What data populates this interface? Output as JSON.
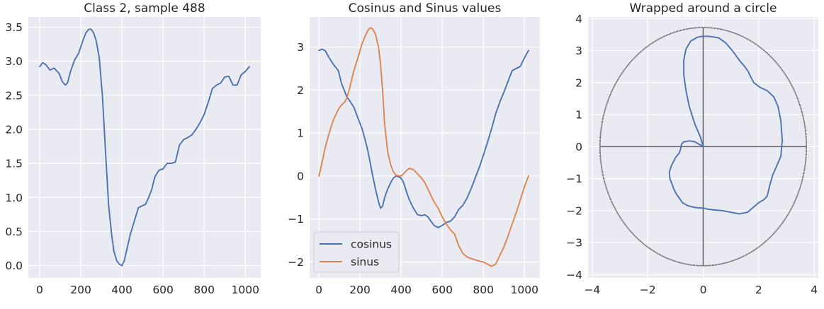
{
  "colors": {
    "cosinus": "#4c72b0",
    "sinus": "#dd8452",
    "plot_bg": "#eaeaf2",
    "grid": "#ffffff",
    "circle": "#666666"
  },
  "chart_data": [
    {
      "type": "line",
      "title": "Class 2, sample 488",
      "xlim": [
        -55,
        1075
      ],
      "ylim": [
        -0.18,
        3.65
      ],
      "xticks": [
        0,
        200,
        400,
        600,
        800,
        1000
      ],
      "xtick_labels": [
        "0",
        "200",
        "400",
        "600",
        "800",
        "1000"
      ],
      "yticks": [
        0,
        0.5,
        1,
        1.5,
        2,
        2.5,
        3,
        3.5
      ],
      "ytick_labels": [
        "0.0",
        "0.5",
        "1.0",
        "1.5",
        "2.0",
        "2.5",
        "3.0",
        "3.5"
      ],
      "grid": true,
      "series": [
        {
          "color": "#4c72b0",
          "x": [
            0,
            15,
            30,
            50,
            70,
            95,
            110,
            125,
            135,
            150,
            170,
            190,
            210,
            225,
            240,
            250,
            262,
            275,
            290,
            305,
            320,
            335,
            350,
            362,
            375,
            388,
            400,
            412,
            425,
            440,
            460,
            480,
            500,
            515,
            530,
            545,
            560,
            580,
            600,
            620,
            640,
            660,
            680,
            700,
            720,
            740,
            760,
            780,
            800,
            820,
            840,
            860,
            880,
            900,
            920,
            940,
            960,
            980,
            1000,
            1020
          ],
          "y": [
            2.92,
            2.98,
            2.95,
            2.87,
            2.9,
            2.82,
            2.7,
            2.65,
            2.68,
            2.85,
            3.02,
            3.12,
            3.3,
            3.42,
            3.47,
            3.47,
            3.42,
            3.3,
            3.05,
            2.5,
            1.7,
            0.9,
            0.45,
            0.2,
            0.07,
            0.02,
            0.0,
            0.08,
            0.25,
            0.45,
            0.65,
            0.85,
            0.88,
            0.9,
            1.0,
            1.12,
            1.3,
            1.4,
            1.42,
            1.5,
            1.5,
            1.52,
            1.77,
            1.85,
            1.88,
            1.92,
            2.0,
            2.1,
            2.22,
            2.4,
            2.6,
            2.65,
            2.68,
            2.77,
            2.78,
            2.65,
            2.65,
            2.8,
            2.85,
            2.92
          ]
        }
      ]
    },
    {
      "type": "line",
      "title": "Cosinus and Sinus values",
      "xlim": [
        -45,
        1075
      ],
      "ylim": [
        -2.37,
        3.7
      ],
      "xticks": [
        0,
        200,
        400,
        600,
        800,
        1000
      ],
      "xtick_labels": [
        "0",
        "200",
        "400",
        "600",
        "800",
        "1000"
      ],
      "yticks": [
        -2,
        -1,
        0,
        1,
        2,
        3
      ],
      "ytick_labels": [
        "−2",
        "−1",
        "0",
        "1",
        "2",
        "3"
      ],
      "grid": true,
      "legend": {
        "entries": [
          "cosinus",
          "sinus"
        ],
        "position": "lower-left"
      },
      "series": [
        {
          "name": "cosinus",
          "color": "#4c72b0",
          "x": [
            0,
            15,
            30,
            50,
            70,
            95,
            110,
            125,
            135,
            150,
            170,
            190,
            210,
            225,
            240,
            250,
            262,
            275,
            290,
            300,
            310,
            320,
            335,
            350,
            362,
            375,
            388,
            400,
            412,
            425,
            440,
            460,
            480,
            500,
            515,
            530,
            545,
            560,
            580,
            600,
            620,
            640,
            660,
            680,
            700,
            720,
            740,
            760,
            780,
            800,
            820,
            840,
            860,
            880,
            900,
            920,
            940,
            960,
            980,
            1000,
            1020
          ],
          "y": [
            2.92,
            2.95,
            2.92,
            2.75,
            2.6,
            2.45,
            2.15,
            1.98,
            1.85,
            1.75,
            1.6,
            1.35,
            1.1,
            0.85,
            0.55,
            0.3,
            0.0,
            -0.3,
            -0.6,
            -0.75,
            -0.7,
            -0.5,
            -0.3,
            -0.15,
            -0.05,
            0.0,
            -0.02,
            -0.05,
            -0.15,
            -0.35,
            -0.55,
            -0.75,
            -0.9,
            -0.92,
            -0.9,
            -0.95,
            -1.05,
            -1.15,
            -1.2,
            -1.15,
            -1.08,
            -1.05,
            -0.95,
            -0.78,
            -0.68,
            -0.52,
            -0.3,
            -0.05,
            0.2,
            0.48,
            0.78,
            1.1,
            1.45,
            1.72,
            1.95,
            2.2,
            2.45,
            2.5,
            2.55,
            2.75,
            2.92
          ]
        },
        {
          "name": "sinus",
          "color": "#dd8452",
          "x": [
            0,
            15,
            30,
            50,
            70,
            95,
            110,
            125,
            135,
            150,
            170,
            190,
            210,
            225,
            240,
            250,
            262,
            275,
            290,
            300,
            310,
            320,
            335,
            350,
            362,
            375,
            388,
            400,
            412,
            425,
            440,
            460,
            480,
            500,
            515,
            530,
            545,
            560,
            580,
            600,
            620,
            640,
            660,
            680,
            700,
            720,
            740,
            760,
            780,
            800,
            820,
            840,
            860,
            880,
            900,
            920,
            940,
            960,
            980,
            1000,
            1020
          ],
          "y": [
            0.0,
            0.3,
            0.65,
            1.0,
            1.3,
            1.55,
            1.65,
            1.72,
            1.8,
            2.05,
            2.45,
            2.75,
            3.08,
            3.25,
            3.4,
            3.45,
            3.42,
            3.3,
            3.0,
            2.6,
            2.0,
            1.2,
            0.55,
            0.25,
            0.1,
            0.02,
            0.0,
            0.0,
            0.05,
            0.12,
            0.18,
            0.15,
            0.05,
            -0.05,
            -0.15,
            -0.3,
            -0.45,
            -0.6,
            -0.75,
            -0.95,
            -1.12,
            -1.25,
            -1.35,
            -1.62,
            -1.8,
            -1.88,
            -1.92,
            -1.95,
            -1.98,
            -2.0,
            -2.05,
            -2.1,
            -2.05,
            -1.85,
            -1.65,
            -1.4,
            -1.12,
            -0.85,
            -0.55,
            -0.25,
            0.0
          ]
        }
      ]
    },
    {
      "type": "line",
      "title": "Wrapped around a circle",
      "xlim": [
        -4.15,
        4.15
      ],
      "ylim": [
        -4.1,
        4.05
      ],
      "xticks": [
        -4,
        -2,
        0,
        2,
        4
      ],
      "xtick_labels": [
        "−4",
        "−2",
        "0",
        "2",
        "4"
      ],
      "yticks": [
        -4,
        -3,
        -2,
        -1,
        0,
        1,
        2,
        3,
        4
      ],
      "ytick_labels": [
        "−4",
        "−3",
        "−2",
        "−1",
        "0",
        "1",
        "2",
        "3",
        "4"
      ],
      "grid": true,
      "circle_radius": 3.72,
      "series": [
        {
          "color": "#4c72b0",
          "x": [
            0.0,
            0.25,
            0.55,
            0.8,
            1.05,
            1.3,
            1.5,
            1.62,
            1.7,
            1.82,
            2.05,
            2.3,
            2.55,
            2.7,
            2.8,
            2.85,
            2.8,
            2.65,
            2.5,
            2.4,
            2.35,
            2.3,
            2.2,
            2.0,
            1.8,
            1.6,
            1.3,
            1.0,
            0.7,
            0.4,
            0.15,
            0.0,
            -0.3,
            -0.55,
            -0.75,
            -0.85,
            -0.95,
            -1.05,
            -1.1,
            -1.2,
            -1.22,
            -1.15,
            -1.0,
            -0.85,
            -0.8,
            -0.78,
            -0.7,
            -0.5,
            -0.3,
            -0.1,
            0.0,
            -0.1,
            -0.3,
            -0.5,
            -0.62,
            -0.7,
            -0.7,
            -0.62,
            -0.45,
            -0.2,
            0.0
          ],
          "y": [
            3.45,
            3.44,
            3.4,
            3.25,
            3.0,
            2.7,
            2.5,
            2.35,
            2.2,
            2.0,
            1.85,
            1.75,
            1.55,
            1.25,
            0.8,
            0.2,
            -0.3,
            -0.6,
            -0.9,
            -1.2,
            -1.4,
            -1.55,
            -1.65,
            -1.75,
            -1.9,
            -2.05,
            -2.1,
            -2.05,
            -2.0,
            -1.98,
            -1.95,
            -1.92,
            -1.9,
            -1.85,
            -1.75,
            -1.62,
            -1.5,
            -1.35,
            -1.22,
            -1.0,
            -0.8,
            -0.6,
            -0.35,
            -0.18,
            -0.02,
            0.08,
            0.15,
            0.18,
            0.15,
            0.05,
            0.0,
            0.3,
            0.7,
            1.25,
            1.75,
            2.25,
            2.7,
            3.05,
            3.3,
            3.42,
            3.45
          ]
        }
      ]
    }
  ]
}
